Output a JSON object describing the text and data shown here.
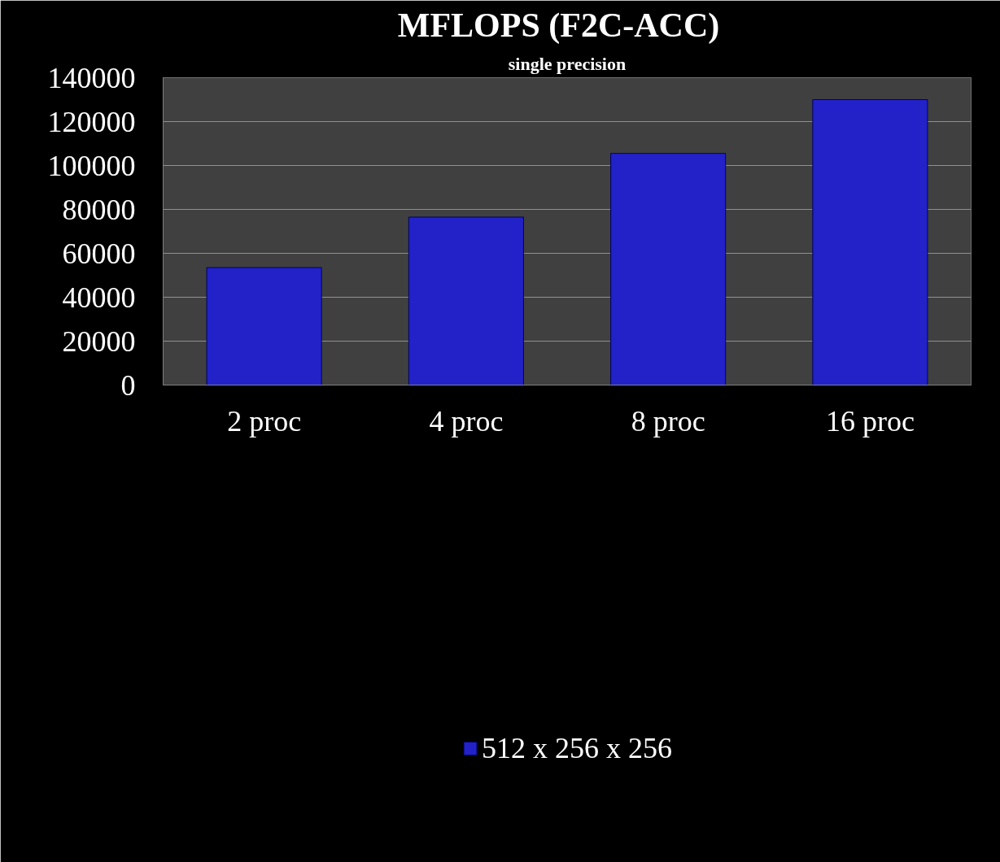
{
  "chart_data": {
    "type": "bar",
    "title": "MFLOPS   (F2C-ACC)",
    "subtitle": "single precision",
    "categories": [
      "2 proc",
      "4 proc",
      "8 proc",
      "16 proc"
    ],
    "series": [
      {
        "name": "512 x 256 x 256",
        "color": "#2222c8",
        "values": [
          53500,
          76500,
          105500,
          130000
        ]
      }
    ],
    "ylim": [
      0,
      140000
    ],
    "yticks": [
      0,
      20000,
      40000,
      60000,
      80000,
      100000,
      120000,
      140000
    ],
    "grid": "y",
    "legend": "bottom"
  }
}
